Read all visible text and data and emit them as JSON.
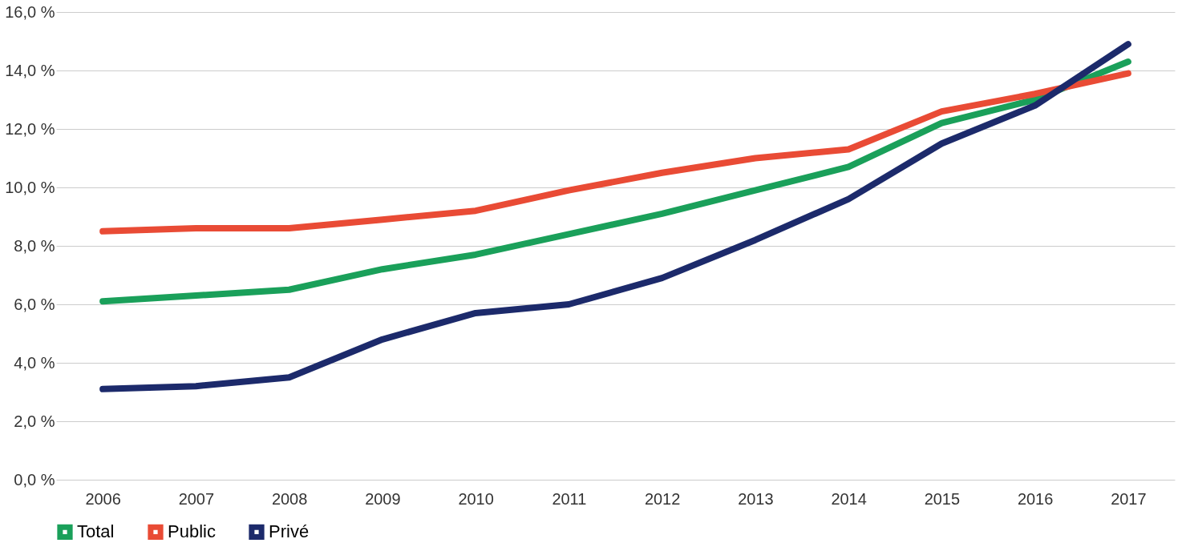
{
  "chart_data": {
    "type": "line",
    "categories": [
      "2006",
      "2007",
      "2008",
      "2009",
      "2010",
      "2011",
      "2012",
      "2013",
      "2014",
      "2015",
      "2016",
      "2017"
    ],
    "series": [
      {
        "name": "Total",
        "color": "#1aa05a",
        "values": [
          6.1,
          6.3,
          6.5,
          7.2,
          7.7,
          8.4,
          9.1,
          9.9,
          10.7,
          12.2,
          13.0,
          14.3
        ]
      },
      {
        "name": "Public",
        "color": "#e94b35",
        "values": [
          8.5,
          8.6,
          8.6,
          8.9,
          9.2,
          9.9,
          10.5,
          11.0,
          11.3,
          12.6,
          13.2,
          13.9
        ]
      },
      {
        "name": "Privé",
        "color": "#1c2a6b",
        "values": [
          3.1,
          3.2,
          3.5,
          4.8,
          5.7,
          6.0,
          6.9,
          8.2,
          9.6,
          11.5,
          12.8,
          14.9
        ]
      }
    ],
    "ylim": [
      0,
      16
    ],
    "yticks": [
      {
        "value": 0,
        "label": "0,0 %"
      },
      {
        "value": 2,
        "label": "2,0 %"
      },
      {
        "value": 4,
        "label": "4,0 %"
      },
      {
        "value": 6,
        "label": "6,0 %"
      },
      {
        "value": 8,
        "label": "8,0 %"
      },
      {
        "value": 10,
        "label": "10,0 %"
      },
      {
        "value": 12,
        "label": "12,0 %"
      },
      {
        "value": 14,
        "label": "14,0 %"
      },
      {
        "value": 16,
        "label": "16,0 %"
      }
    ],
    "grid": "y",
    "legend": "bottom",
    "marker": "none",
    "line_style": "solid"
  }
}
